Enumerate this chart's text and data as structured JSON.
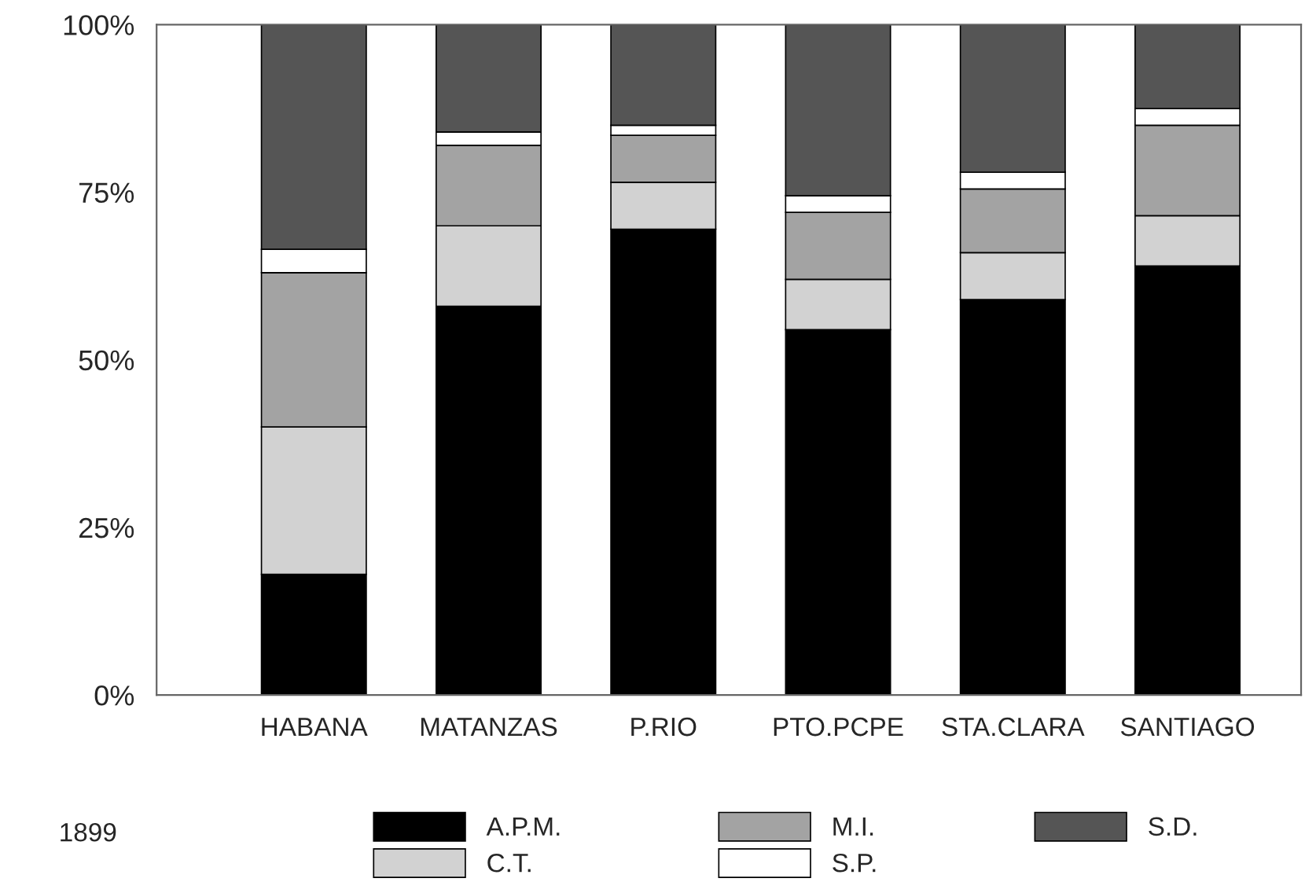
{
  "chart_data": {
    "type": "bar",
    "stacked": true,
    "categories": [
      "HABANA",
      "MATANZAS",
      "P.RIO",
      "PTO.PCPE",
      "STA.CLARA",
      "SANTIAGO"
    ],
    "series": [
      {
        "name": "A.P.M.",
        "color": "#000000",
        "values": [
          18,
          58,
          69.5,
          54.5,
          59,
          64
        ]
      },
      {
        "name": "C.T.",
        "color": "#d2d2d2",
        "values": [
          22,
          12,
          7,
          7.5,
          7,
          7.5
        ]
      },
      {
        "name": "M.I.",
        "color": "#a3a3a3",
        "values": [
          23,
          12,
          7,
          10,
          9.5,
          13.5
        ]
      },
      {
        "name": "S.P.",
        "color": "#ffffff",
        "values": [
          3.5,
          2,
          1.5,
          2.5,
          2.5,
          2.5
        ]
      },
      {
        "name": "S.D.",
        "color": "#555555",
        "values": [
          33.5,
          16,
          15,
          25.5,
          22,
          12.5
        ]
      }
    ],
    "ylim": [
      0,
      100
    ],
    "yticks": [
      {
        "value": 0,
        "label": "0%"
      },
      {
        "value": 25,
        "label": "25%"
      },
      {
        "value": 50,
        "label": "50%"
      },
      {
        "value": 75,
        "label": "75%"
      },
      {
        "value": 100,
        "label": "100%"
      }
    ],
    "legend": "bottom",
    "annotations": [
      "1899"
    ]
  }
}
